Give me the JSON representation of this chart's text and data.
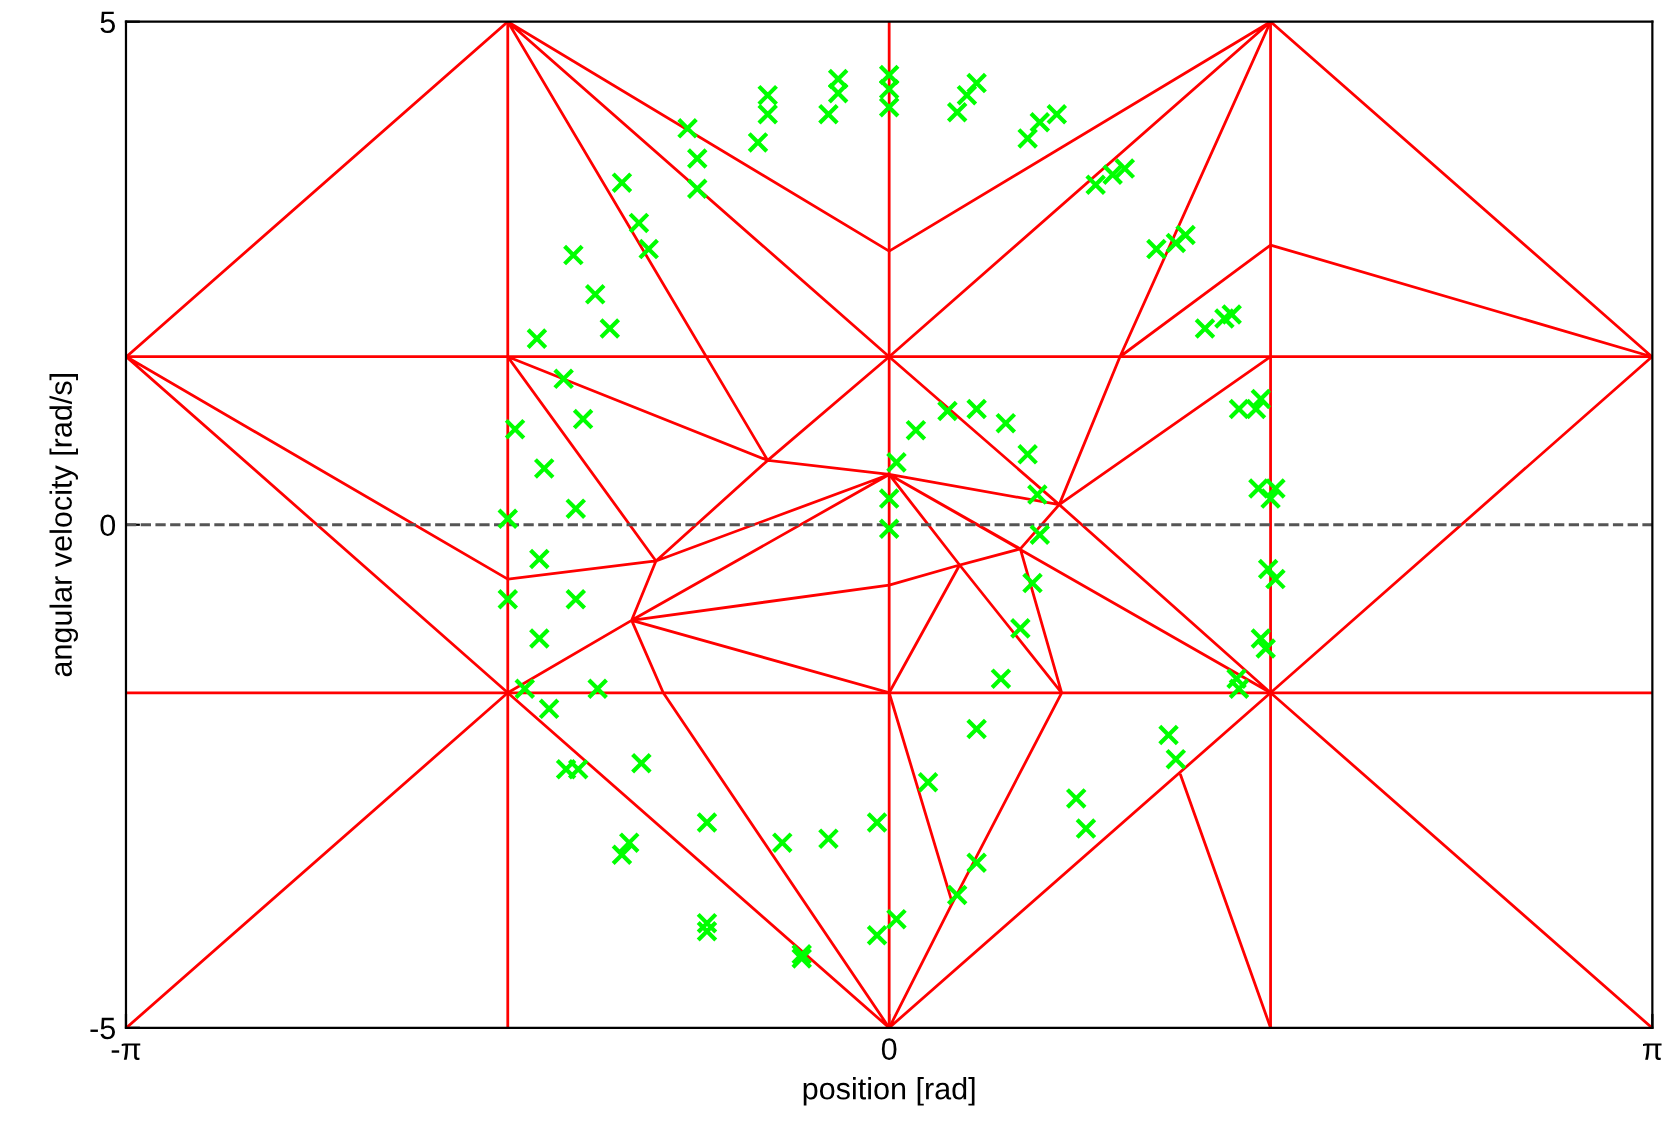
{
  "chart_data": {
    "type": "scatter",
    "xlabel": "position [rad]",
    "ylabel": "angular velocity [rad/s]",
    "xlim": [
      -3.1416,
      3.1416
    ],
    "ylim": [
      -5,
      5
    ],
    "xticks": [
      {
        "value": -3.1416,
        "label": "-π"
      },
      0,
      {
        "value": 3.1416,
        "label": "π"
      }
    ],
    "yticks": [
      -5,
      0,
      5
    ],
    "grid": false,
    "legend": false,
    "marker": "cross",
    "ref_lines": [
      {
        "axis": "y",
        "value": 0,
        "color": "#555555",
        "line_style": "dashed"
      }
    ],
    "series": [
      {
        "type": "line",
        "color": "#ff0000",
        "line_style": "solid",
        "marker": "none",
        "x": [
          -3.14,
          3.14
        ],
        "values": [
          1.67,
          1.67
        ]
      },
      {
        "type": "line",
        "color": "#ff0000",
        "line_style": "solid",
        "marker": "none",
        "x": [
          -3.14,
          3.14
        ],
        "values": [
          -1.67,
          -1.67
        ]
      },
      {
        "type": "line",
        "color": "#ff0000",
        "line_style": "solid",
        "marker": "none",
        "x": [
          -1.57,
          -1.57
        ],
        "values": [
          -5,
          5
        ]
      },
      {
        "type": "line",
        "color": "#ff0000",
        "line_style": "solid",
        "marker": "none",
        "x": [
          0,
          0
        ],
        "values": [
          -5,
          5
        ]
      },
      {
        "type": "line",
        "color": "#ff0000",
        "line_style": "solid",
        "marker": "none",
        "x": [
          1.57,
          1.57
        ],
        "values": [
          -5,
          5
        ]
      },
      {
        "type": "line",
        "color": "#ff0000",
        "line_style": "solid",
        "marker": "none",
        "x": [
          -3.14,
          -1.57,
          null,
          -1.57,
          0,
          1.57,
          null,
          -1.57,
          0,
          1.57,
          null,
          -1.57,
          -0.5,
          null,
          1.57,
          0.95,
          0.7,
          null,
          0.95,
          1.57,
          3.14,
          1.57,
          null,
          1.57,
          0.7,
          0,
          null,
          0,
          0.7,
          0.54,
          null,
          0.7,
          1.57,
          0,
          null,
          0,
          0.54,
          null,
          0,
          0.29,
          0,
          null,
          0.29,
          0.54,
          0.71,
          0.29,
          0,
          0.26,
          0.71,
          null,
          0.26,
          0,
          1.57,
          3.14,
          null,
          1.57,
          3.14,
          null,
          1.2,
          1.57,
          null,
          -3.14,
          -1.57,
          0,
          null,
          -3.14,
          -1.57,
          -1.06,
          -0.96,
          null,
          -3.14,
          -1.57,
          -0.96,
          null,
          -1.57,
          -0.5,
          0,
          null,
          -0.5,
          0,
          -0.96,
          -1.57,
          null,
          -0.96,
          -0.5,
          null,
          0,
          -1.06,
          0,
          null,
          0,
          -1.06,
          -0.93,
          0
        ],
        "values": [
          1.67,
          5,
          null,
          5,
          2.72,
          5,
          null,
          5,
          1.67,
          5,
          null,
          5,
          0.64,
          null,
          5,
          1.67,
          0.2,
          null,
          1.67,
          2.78,
          1.67,
          5,
          null,
          1.67,
          0.2,
          1.67,
          null,
          0.5,
          0.2,
          -0.24,
          null,
          0.2,
          -1.67,
          0.5,
          null,
          0.5,
          -0.24,
          null,
          0.5,
          -0.4,
          -0.6,
          null,
          -0.4,
          -0.24,
          -1.67,
          -0.4,
          -1.67,
          -3.76,
          -1.67,
          null,
          -3.76,
          -5,
          -1.67,
          1.67,
          null,
          -1.67,
          -5,
          null,
          -2.49,
          -5,
          null,
          -5,
          -1.67,
          -5,
          null,
          1.67,
          -1.67,
          -0.95,
          -0.36,
          null,
          1.67,
          -0.54,
          -0.36,
          null,
          1.67,
          0.64,
          1.67,
          null,
          0.64,
          0.5,
          -0.36,
          1.67,
          null,
          -0.36,
          0.64,
          null,
          0.5,
          -0.95,
          -0.6,
          null,
          -1.67,
          -0.95,
          -1.67,
          -5
        ]
      },
      {
        "color": "#00ff00",
        "x": [
          0,
          0,
          0.03,
          0.11,
          0.24,
          0.36,
          0.48,
          0.57,
          0.61,
          0.62,
          0.59,
          0.54,
          0.46,
          0.36,
          0.16,
          -0.05,
          -0.25,
          -0.44,
          -0.75,
          -1.02,
          -1.2,
          -1.29,
          -1.29,
          -1.26,
          -1.15,
          -0.99,
          -0.79,
          -0.54,
          -0.25,
          0,
          0.28,
          0.57,
          0.85,
          1.1,
          1.3,
          1.44,
          1.52,
          1.56,
          1.53,
          1.43,
          1.15,
          0.77,
          0.36,
          0.03,
          -0.36,
          -0.75,
          -1.07,
          -1.28,
          -1.4,
          -1.44,
          -1.44,
          -1.42,
          -1.34,
          -1.21,
          -1.03,
          -0.79,
          -0.5,
          -0.21,
          0,
          0.32,
          0.62,
          0.92,
          1.18,
          1.38,
          1.51,
          1.57,
          1.59,
          1.55,
          1.44,
          1.18,
          0.81,
          0.28,
          -0.05,
          -0.36,
          -0.75,
          -1.1,
          -1.33,
          -1.5,
          -1.57,
          -1.57,
          -1.54,
          -1.45,
          -1.3,
          -1.1,
          -0.83,
          -0.5,
          -0.21,
          0,
          0.36,
          0.69,
          0.97,
          1.22,
          1.41,
          1.53,
          1.59
        ],
        "values": [
          -0.04,
          0.26,
          0.62,
          0.94,
          1.13,
          1.15,
          1.01,
          0.7,
          0.3,
          -0.1,
          -0.58,
          -1.03,
          -1.53,
          -2.03,
          -2.56,
          -2.96,
          -3.12,
          -3.16,
          -2.96,
          -2.37,
          -1.63,
          -0.74,
          0.16,
          1.05,
          1.95,
          2.74,
          3.34,
          3.8,
          4.08,
          4.15,
          4.1,
          3.84,
          3.38,
          2.74,
          1.95,
          1.15,
          0.36,
          -0.44,
          -1.13,
          -1.53,
          -2.09,
          -2.72,
          -3.36,
          -3.92,
          -4.27,
          -3.96,
          -3.16,
          -2.43,
          -1.83,
          -1.13,
          -0.34,
          0.56,
          1.45,
          2.29,
          3,
          3.64,
          4.08,
          4.29,
          4.33,
          4.27,
          4,
          3.48,
          2.8,
          2.05,
          1.15,
          0.26,
          -0.54,
          -1.23,
          -1.63,
          -2.33,
          -3.02,
          -3.68,
          -4.08,
          -4.31,
          -4.04,
          -3.28,
          -2.43,
          -1.63,
          -0.74,
          0.06,
          0.95,
          1.85,
          2.68,
          3.4,
          3.94,
          4.27,
          4.43,
          4.47,
          4.39,
          4.08,
          3.54,
          2.88,
          2.09,
          1.25,
          0.36
        ]
      }
    ]
  }
}
